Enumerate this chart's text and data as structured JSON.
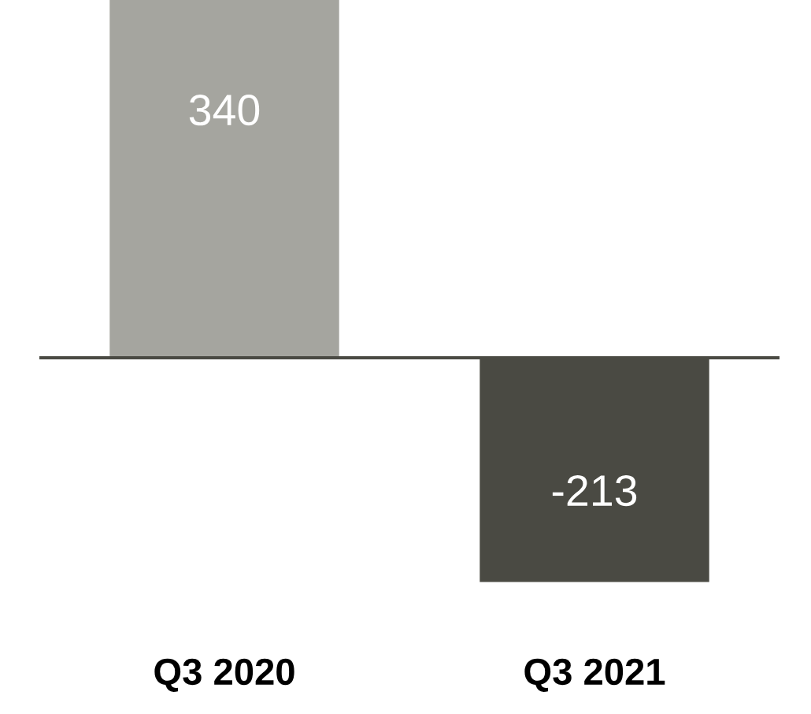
{
  "chart_data": {
    "type": "bar",
    "categories": [
      "Q3 2020",
      "Q3 2021"
    ],
    "values": [
      340,
      -213
    ],
    "colors": [
      "#a5a59f",
      "#4a4a43"
    ],
    "data_labels": true,
    "grid": false,
    "legend": false
  }
}
